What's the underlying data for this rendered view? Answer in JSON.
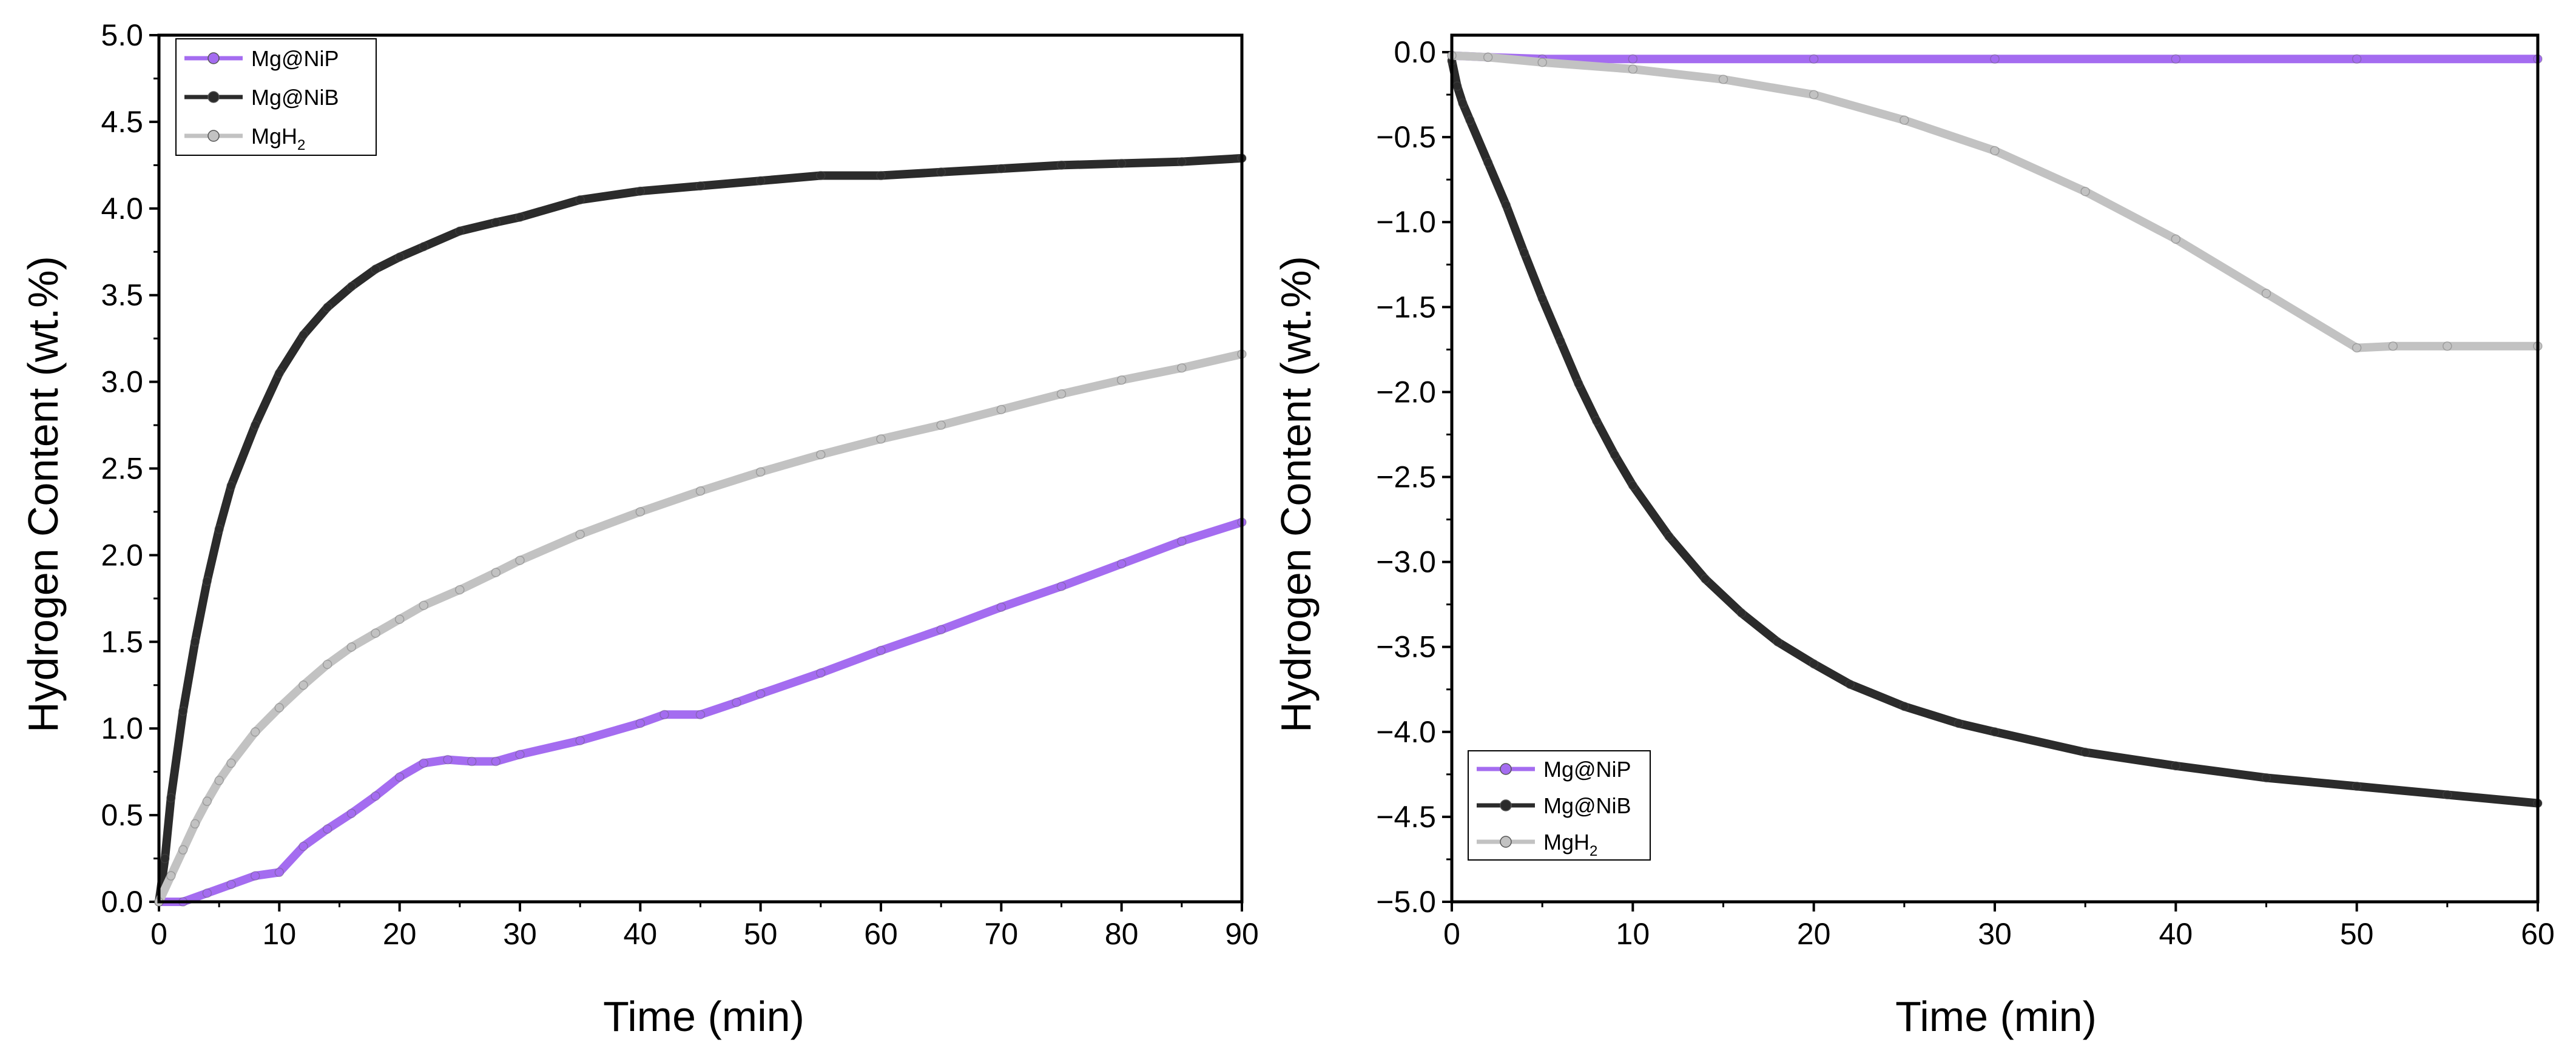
{
  "chart_data": [
    {
      "type": "line",
      "title": "",
      "xlabel": "Time (min)",
      "ylabel": "Hydrogen Content (wt.%)",
      "xlim": [
        0,
        90
      ],
      "ylim": [
        0,
        5
      ],
      "x_ticks": [
        0,
        10,
        20,
        30,
        40,
        50,
        60,
        70,
        80,
        90
      ],
      "x_tick_labels": [
        "0",
        "10",
        "20",
        "30",
        "40",
        "50",
        "60",
        "70",
        "80",
        "90"
      ],
      "y_ticks": [
        0,
        0.5,
        1,
        1.5,
        2,
        2.5,
        3,
        3.5,
        4,
        4.5,
        5
      ],
      "y_tick_labels": [
        "0.0",
        "0.5",
        "1.0",
        "1.5",
        "2.0",
        "2.5",
        "3.0",
        "3.5",
        "4.0",
        "4.5",
        "5.0"
      ],
      "grid": false,
      "legend_position": "top-left",
      "series": [
        {
          "name": "Mg@NiP",
          "label_main": "Mg@NiP",
          "label_sub": "",
          "color": "#a46cf0",
          "x": [
            0,
            2,
            4,
            6,
            8,
            10,
            12,
            14,
            16,
            18,
            20,
            22,
            24,
            26,
            28,
            30,
            35,
            40,
            42,
            45,
            48,
            50,
            55,
            60,
            65,
            70,
            75,
            80,
            85,
            90
          ],
          "y": [
            0,
            0.0,
            0.05,
            0.1,
            0.15,
            0.17,
            0.32,
            0.42,
            0.51,
            0.61,
            0.72,
            0.8,
            0.82,
            0.81,
            0.81,
            0.85,
            0.93,
            1.03,
            1.08,
            1.08,
            1.15,
            1.2,
            1.32,
            1.45,
            1.57,
            1.7,
            1.82,
            1.95,
            2.08,
            2.19
          ]
        },
        {
          "name": "Mg@NiB",
          "label_main": "Mg@NiB",
          "label_sub": "",
          "color": "#2b2b2b",
          "x": [
            0,
            0.5,
            1,
            2,
            3,
            4,
            5,
            6,
            8,
            10,
            12,
            14,
            16,
            18,
            20,
            22,
            25,
            28,
            30,
            35,
            40,
            45,
            50,
            55,
            60,
            65,
            70,
            75,
            80,
            85,
            90
          ],
          "y": [
            0,
            0.25,
            0.6,
            1.1,
            1.5,
            1.85,
            2.15,
            2.4,
            2.75,
            3.05,
            3.27,
            3.43,
            3.55,
            3.65,
            3.72,
            3.78,
            3.87,
            3.92,
            3.95,
            4.05,
            4.1,
            4.13,
            4.16,
            4.19,
            4.19,
            4.21,
            4.23,
            4.25,
            4.26,
            4.27,
            4.29
          ]
        },
        {
          "name": "MgH2",
          "label_main": "MgH",
          "label_sub": "2",
          "color": "#c2c2c2",
          "x": [
            0,
            1,
            2,
            3,
            4,
            5,
            6,
            8,
            10,
            12,
            14,
            16,
            18,
            20,
            22,
            25,
            28,
            30,
            35,
            40,
            45,
            50,
            55,
            60,
            65,
            70,
            75,
            80,
            85,
            90
          ],
          "y": [
            0,
            0.15,
            0.3,
            0.45,
            0.58,
            0.7,
            0.8,
            0.98,
            1.12,
            1.25,
            1.37,
            1.47,
            1.55,
            1.63,
            1.71,
            1.8,
            1.9,
            1.97,
            2.12,
            2.25,
            2.37,
            2.48,
            2.58,
            2.67,
            2.75,
            2.84,
            2.93,
            3.01,
            3.08,
            3.16
          ]
        }
      ]
    },
    {
      "type": "line",
      "title": "",
      "xlabel": "Time (min)",
      "ylabel": "Hydrogen Content (wt.%)",
      "xlim": [
        0,
        60
      ],
      "ylim": [
        -5,
        0.1
      ],
      "x_ticks": [
        0,
        10,
        20,
        30,
        40,
        50,
        60
      ],
      "x_tick_labels": [
        "0",
        "10",
        "20",
        "30",
        "40",
        "50",
        "60"
      ],
      "y_ticks": [
        0,
        -0.5,
        -1,
        -1.5,
        -2,
        -2.5,
        -3,
        -3.5,
        -4,
        -4.5,
        -5
      ],
      "y_tick_labels": [
        "0.0",
        "−0.5",
        "−1.0",
        "−1.5",
        "−2.0",
        "−2.5",
        "−3.0",
        "−3.5",
        "−4.0",
        "−4.5",
        "−5.0"
      ],
      "grid": false,
      "legend_position": "bottom-left",
      "series": [
        {
          "name": "Mg@NiP",
          "label_main": "Mg@NiP",
          "label_sub": "",
          "color": "#a46cf0",
          "x": [
            0,
            2,
            5,
            10,
            20,
            30,
            40,
            50,
            60
          ],
          "y": [
            -0.02,
            -0.03,
            -0.04,
            -0.04,
            -0.04,
            -0.04,
            -0.04,
            -0.04,
            -0.04
          ]
        },
        {
          "name": "Mg@NiB",
          "label_main": "Mg@NiB",
          "label_sub": "",
          "color": "#2b2b2b",
          "x": [
            0,
            0.3,
            0.6,
            1,
            2,
            3,
            4,
            5,
            6,
            7,
            8,
            9,
            10,
            12,
            14,
            16,
            18,
            20,
            22,
            25,
            28,
            30,
            35,
            40,
            45,
            50,
            55,
            60
          ],
          "y": [
            -0.05,
            -0.2,
            -0.3,
            -0.4,
            -0.65,
            -0.9,
            -1.18,
            -1.45,
            -1.7,
            -1.95,
            -2.17,
            -2.37,
            -2.55,
            -2.85,
            -3.1,
            -3.3,
            -3.47,
            -3.6,
            -3.72,
            -3.85,
            -3.95,
            -4.0,
            -4.12,
            -4.2,
            -4.27,
            -4.32,
            -4.37,
            -4.42
          ]
        },
        {
          "name": "MgH2",
          "label_main": "MgH",
          "label_sub": "2",
          "color": "#c2c2c2",
          "x": [
            0,
            2,
            5,
            10,
            15,
            20,
            25,
            30,
            35,
            40,
            45,
            50,
            52,
            55,
            60
          ],
          "y": [
            -0.02,
            -0.03,
            -0.06,
            -0.1,
            -0.16,
            -0.25,
            -0.4,
            -0.58,
            -0.82,
            -1.1,
            -1.42,
            -1.74,
            -1.73,
            -1.73,
            -1.73
          ]
        }
      ]
    }
  ]
}
